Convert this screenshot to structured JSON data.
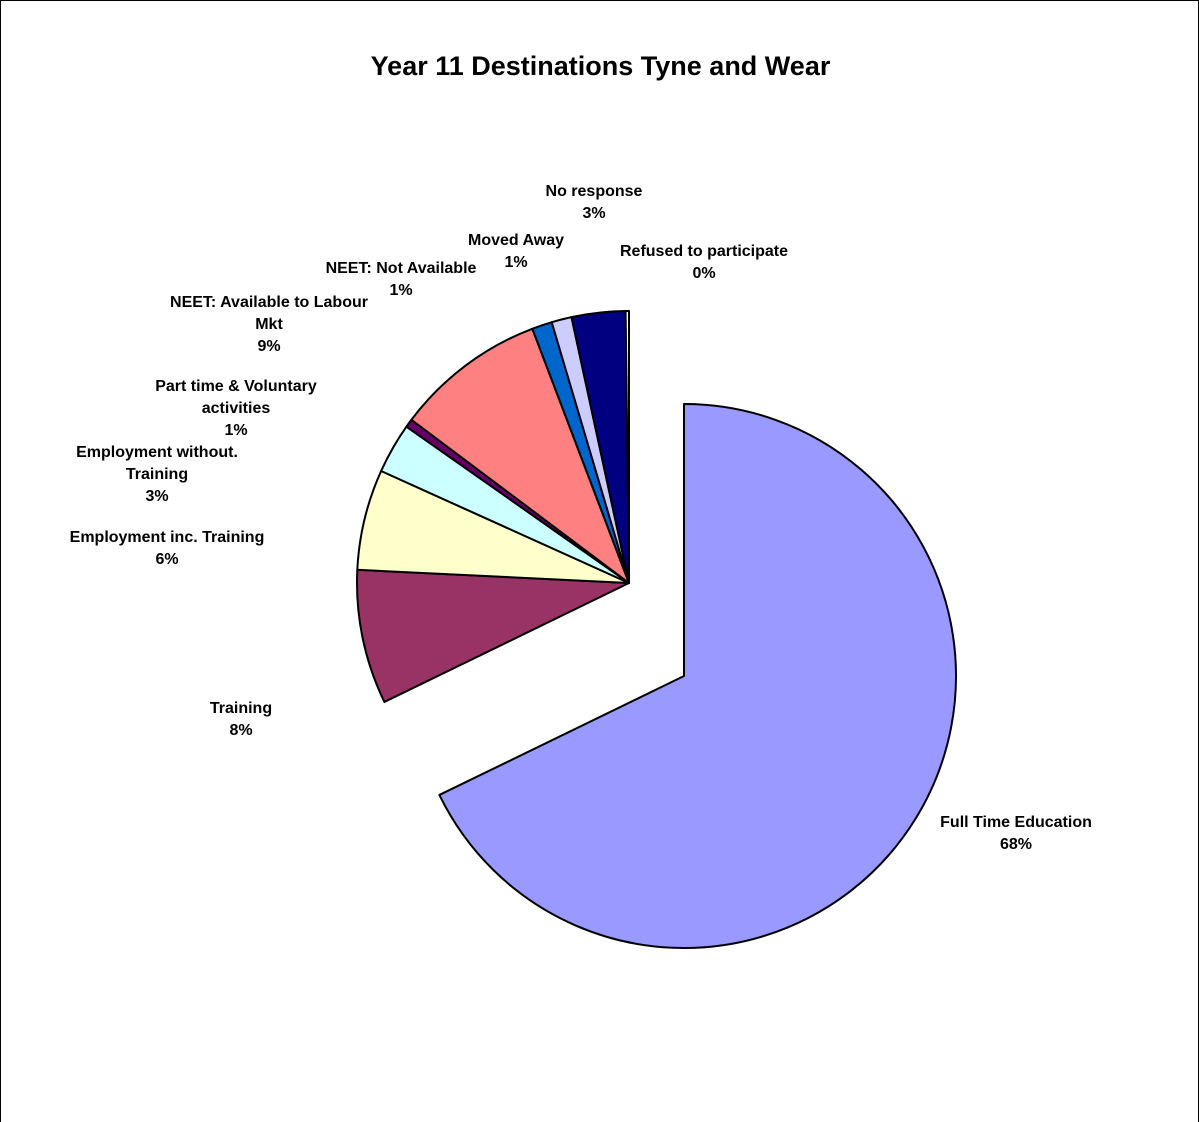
{
  "chart_data": {
    "type": "pie",
    "title": "Year 11 Destinations Tyne and Wear",
    "slices": [
      {
        "label_lines": [
          "Full Time Education"
        ],
        "pct_label": "68%",
        "value": 68,
        "color": "#9999ff"
      },
      {
        "label_lines": [
          "Training"
        ],
        "pct_label": "8%",
        "value": 8,
        "color": "#993366"
      },
      {
        "label_lines": [
          "Employment inc. Training"
        ],
        "pct_label": "6%",
        "value": 6,
        "color": "#ffffcc"
      },
      {
        "label_lines": [
          "Employment without.",
          "Training"
        ],
        "pct_label": "3%",
        "value": 3,
        "color": "#ccffff"
      },
      {
        "label_lines": [
          "Part time & Voluntary",
          "activities"
        ],
        "pct_label": "1%",
        "value": 0.5,
        "color": "#660066"
      },
      {
        "label_lines": [
          "NEET: Available to Labour",
          "Mkt"
        ],
        "pct_label": "9%",
        "value": 9,
        "color": "#ff8080"
      },
      {
        "label_lines": [
          "NEET: Not Available"
        ],
        "pct_label": "1%",
        "value": 1.2,
        "color": "#0066cc"
      },
      {
        "label_lines": [
          "Moved Away"
        ],
        "pct_label": "1%",
        "value": 1.2,
        "color": "#ccccff"
      },
      {
        "label_lines": [
          "No response"
        ],
        "pct_label": "3%",
        "value": 3.2,
        "color": "#000080"
      },
      {
        "label_lines": [
          "Refused to participate"
        ],
        "pct_label": "0%",
        "value": 0.2,
        "color": "#ffffff"
      }
    ]
  }
}
